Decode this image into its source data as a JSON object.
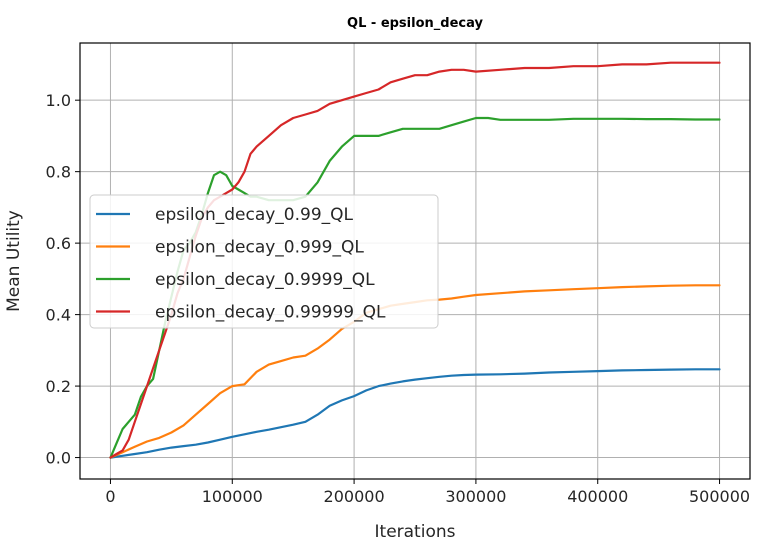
{
  "chart_data": {
    "type": "line",
    "title": "QL - epsilon_decay",
    "xlabel": "Iterations",
    "ylabel": "Mean Utility",
    "xlim": [
      -25000,
      525000
    ],
    "ylim": [
      -0.06,
      1.16
    ],
    "xticks": [
      0,
      100000,
      200000,
      300000,
      400000,
      500000
    ],
    "yticks": [
      0.0,
      0.2,
      0.4,
      0.6,
      0.8,
      1.0
    ],
    "xtick_labels": [
      "0",
      "100000",
      "200000",
      "300000",
      "400000",
      "500000"
    ],
    "ytick_labels": [
      "0.0",
      "0.2",
      "0.4",
      "0.6",
      "0.8",
      "1.0"
    ],
    "grid": true,
    "legend_position": "center-left",
    "series": [
      {
        "name": "epsilon_decay_0.99_QL",
        "color": "#1f77b4",
        "x": [
          0,
          10000,
          20000,
          30000,
          40000,
          50000,
          60000,
          70000,
          80000,
          90000,
          100000,
          110000,
          120000,
          130000,
          140000,
          150000,
          160000,
          170000,
          180000,
          190000,
          200000,
          210000,
          220000,
          230000,
          240000,
          250000,
          260000,
          270000,
          280000,
          290000,
          300000,
          320000,
          340000,
          360000,
          380000,
          400000,
          420000,
          440000,
          460000,
          480000,
          500000
        ],
        "y": [
          0.0,
          0.005,
          0.01,
          0.015,
          0.022,
          0.028,
          0.032,
          0.036,
          0.042,
          0.05,
          0.058,
          0.065,
          0.072,
          0.078,
          0.085,
          0.092,
          0.1,
          0.12,
          0.145,
          0.16,
          0.172,
          0.188,
          0.2,
          0.207,
          0.213,
          0.218,
          0.222,
          0.226,
          0.229,
          0.231,
          0.232,
          0.233,
          0.235,
          0.238,
          0.24,
          0.242,
          0.244,
          0.245,
          0.246,
          0.247,
          0.247
        ]
      },
      {
        "name": "epsilon_decay_0.999_QL",
        "color": "#ff7f0e",
        "x": [
          0,
          10000,
          20000,
          30000,
          40000,
          50000,
          60000,
          70000,
          80000,
          90000,
          100000,
          110000,
          120000,
          130000,
          140000,
          150000,
          160000,
          170000,
          180000,
          190000,
          200000,
          210000,
          220000,
          230000,
          240000,
          250000,
          260000,
          270000,
          280000,
          290000,
          300000,
          320000,
          340000,
          360000,
          380000,
          400000,
          420000,
          440000,
          460000,
          480000,
          500000
        ],
        "y": [
          0.0,
          0.015,
          0.03,
          0.045,
          0.055,
          0.07,
          0.09,
          0.12,
          0.15,
          0.18,
          0.2,
          0.205,
          0.24,
          0.26,
          0.27,
          0.28,
          0.285,
          0.305,
          0.33,
          0.36,
          0.38,
          0.405,
          0.415,
          0.425,
          0.43,
          0.435,
          0.44,
          0.442,
          0.445,
          0.45,
          0.455,
          0.46,
          0.465,
          0.468,
          0.471,
          0.474,
          0.477,
          0.479,
          0.481,
          0.482,
          0.482
        ]
      },
      {
        "name": "epsilon_decay_0.9999_QL",
        "color": "#2ca02c",
        "x": [
          0,
          5000,
          10000,
          15000,
          20000,
          25000,
          30000,
          35000,
          40000,
          45000,
          50000,
          55000,
          60000,
          65000,
          70000,
          75000,
          80000,
          85000,
          90000,
          95000,
          100000,
          105000,
          110000,
          115000,
          120000,
          130000,
          140000,
          150000,
          160000,
          170000,
          180000,
          190000,
          200000,
          210000,
          220000,
          230000,
          240000,
          250000,
          260000,
          270000,
          280000,
          290000,
          300000,
          310000,
          320000,
          340000,
          360000,
          380000,
          400000,
          420000,
          440000,
          460000,
          480000,
          500000
        ],
        "y": [
          0.0,
          0.04,
          0.08,
          0.1,
          0.12,
          0.17,
          0.2,
          0.22,
          0.3,
          0.38,
          0.45,
          0.52,
          0.58,
          0.6,
          0.63,
          0.68,
          0.74,
          0.79,
          0.8,
          0.79,
          0.76,
          0.75,
          0.74,
          0.73,
          0.73,
          0.72,
          0.72,
          0.72,
          0.73,
          0.77,
          0.83,
          0.87,
          0.9,
          0.9,
          0.9,
          0.91,
          0.92,
          0.92,
          0.92,
          0.92,
          0.93,
          0.94,
          0.95,
          0.95,
          0.945,
          0.945,
          0.945,
          0.948,
          0.948,
          0.948,
          0.947,
          0.947,
          0.946,
          0.946
        ]
      },
      {
        "name": "epsilon_decay_0.99999_QL",
        "color": "#d62728",
        "x": [
          0,
          5000,
          10000,
          15000,
          20000,
          25000,
          30000,
          35000,
          40000,
          45000,
          50000,
          55000,
          60000,
          65000,
          70000,
          75000,
          80000,
          85000,
          90000,
          95000,
          100000,
          105000,
          110000,
          115000,
          120000,
          130000,
          140000,
          150000,
          160000,
          170000,
          180000,
          190000,
          200000,
          210000,
          220000,
          230000,
          240000,
          250000,
          260000,
          270000,
          280000,
          290000,
          300000,
          320000,
          340000,
          360000,
          380000,
          400000,
          420000,
          440000,
          460000,
          480000,
          500000
        ],
        "y": [
          0.0,
          0.01,
          0.02,
          0.05,
          0.1,
          0.15,
          0.2,
          0.25,
          0.3,
          0.35,
          0.4,
          0.46,
          0.5,
          0.56,
          0.62,
          0.67,
          0.7,
          0.72,
          0.73,
          0.74,
          0.75,
          0.77,
          0.8,
          0.85,
          0.87,
          0.9,
          0.93,
          0.95,
          0.96,
          0.97,
          0.99,
          1.0,
          1.01,
          1.02,
          1.03,
          1.05,
          1.06,
          1.07,
          1.07,
          1.08,
          1.085,
          1.085,
          1.08,
          1.085,
          1.09,
          1.09,
          1.095,
          1.095,
          1.1,
          1.1,
          1.105,
          1.105,
          1.105
        ]
      }
    ]
  }
}
